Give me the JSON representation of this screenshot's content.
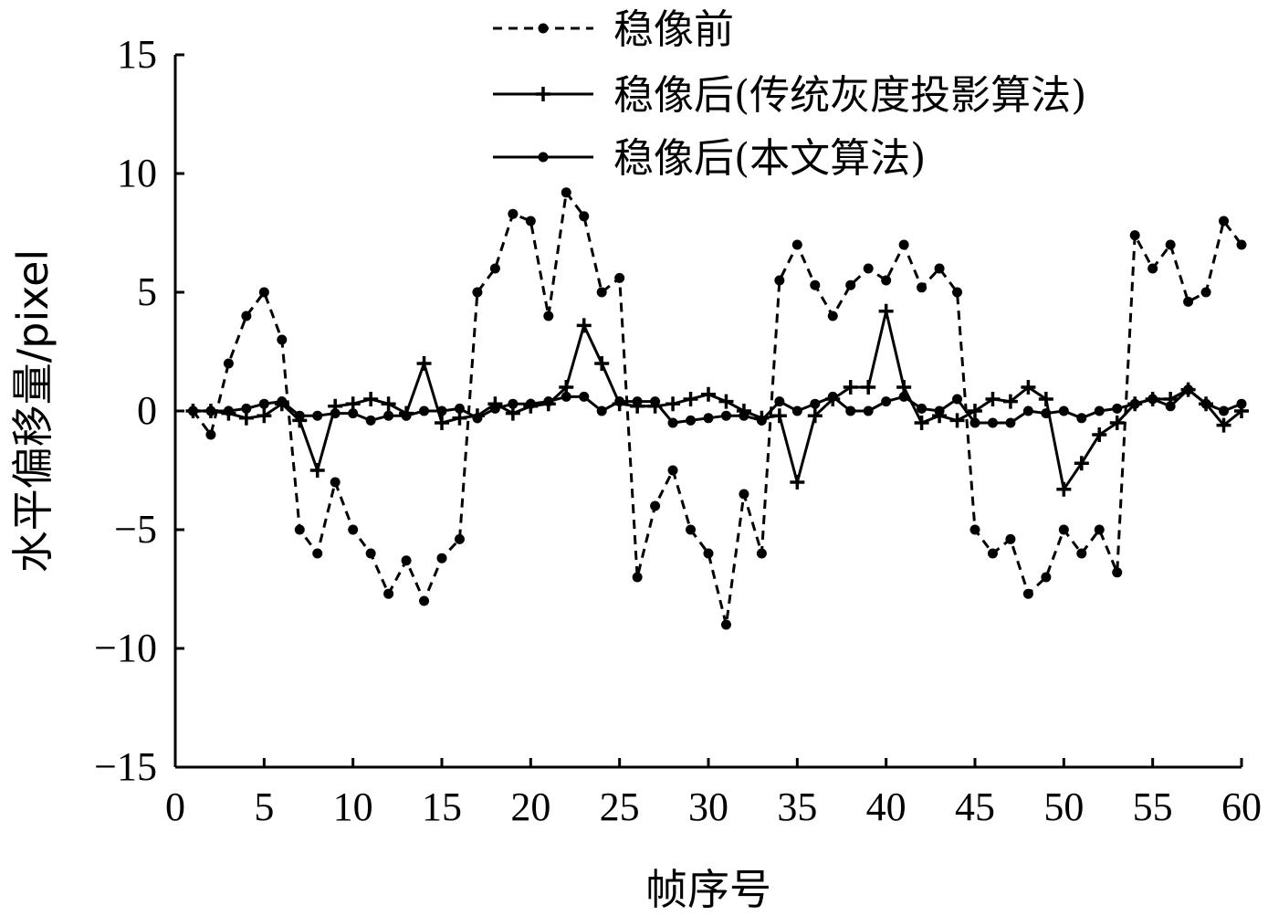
{
  "chart_data": {
    "type": "line",
    "xlabel": "帧序号",
    "ylabel": "水平偏移量/pixel",
    "xlim": [
      0,
      60
    ],
    "ylim": [
      -15,
      15
    ],
    "x_ticks": [
      0,
      5,
      10,
      15,
      20,
      25,
      30,
      35,
      40,
      45,
      50,
      55,
      60
    ],
    "y_ticks": [
      15,
      10,
      5,
      0,
      -5,
      -10,
      -15
    ],
    "y_tick_labels": [
      "15",
      "10",
      "5",
      "0",
      "−5",
      "−10",
      "−15"
    ],
    "grid": false,
    "legend_position": "top",
    "x": [
      1,
      2,
      3,
      4,
      5,
      6,
      7,
      8,
      9,
      10,
      11,
      12,
      13,
      14,
      15,
      16,
      17,
      18,
      19,
      20,
      21,
      22,
      23,
      24,
      25,
      26,
      27,
      28,
      29,
      30,
      31,
      32,
      33,
      34,
      35,
      36,
      37,
      38,
      39,
      40,
      41,
      42,
      43,
      44,
      45,
      46,
      47,
      48,
      49,
      50,
      51,
      52,
      53,
      54,
      55,
      56,
      57,
      58,
      59,
      60
    ],
    "series": [
      {
        "name": "稳像前",
        "line_style": "dashed",
        "marker": "circle",
        "values": [
          0,
          -1,
          2,
          4,
          5,
          3,
          -5,
          -6,
          -3,
          -5,
          -6,
          -7.7,
          -6.3,
          -8,
          -6.2,
          -5.4,
          5,
          6,
          8.3,
          8,
          4,
          9.2,
          8.2,
          5,
          5.6,
          -7,
          -4,
          -2.5,
          -5,
          -6,
          -9,
          -3.5,
          -6,
          5.5,
          7,
          5.3,
          4,
          5.3,
          6,
          5.5,
          7,
          5.2,
          6,
          5,
          -5,
          -6,
          -5.4,
          -7.7,
          -7,
          -5,
          -6,
          -5,
          -6.8,
          7.4,
          6,
          7,
          4.6,
          5,
          8,
          7
        ]
      },
      {
        "name": "稳像后(传统灰度投影算法)",
        "line_style": "solid",
        "marker": "cross",
        "values": [
          0,
          0,
          -0.1,
          -0.3,
          -0.2,
          0.3,
          -0.4,
          -2.5,
          0.2,
          0.3,
          0.5,
          0.3,
          -0.1,
          2,
          -0.5,
          -0.3,
          -0.2,
          0.3,
          -0.1,
          0.2,
          0.3,
          1,
          3.6,
          2,
          0.3,
          0.2,
          0.2,
          0.3,
          0.5,
          0.7,
          0.4,
          0,
          -0.3,
          -0.2,
          -3,
          -0.2,
          0.5,
          1,
          1,
          4.2,
          1,
          -0.5,
          -0.2,
          -0.4,
          0,
          0.5,
          0.4,
          1,
          0.5,
          -3.3,
          -2.2,
          -1,
          -0.5,
          0.3,
          0.5,
          0.5,
          0.9,
          0.3,
          -0.6,
          0
        ]
      },
      {
        "name": "稳像后(本文算法)",
        "line_style": "solid",
        "marker": "circle",
        "values": [
          0,
          0,
          0,
          0.1,
          0.3,
          0.4,
          -0.2,
          -0.2,
          -0.1,
          -0.1,
          -0.4,
          -0.2,
          -0.2,
          0,
          0,
          0.1,
          -0.3,
          0.1,
          0.3,
          0.3,
          0.4,
          0.6,
          0.6,
          0,
          0.4,
          0.4,
          0.4,
          -0.5,
          -0.4,
          -0.3,
          -0.2,
          -0.2,
          -0.4,
          0.4,
          0,
          0.3,
          0.6,
          0,
          0,
          0.4,
          0.6,
          0.1,
          0,
          0.5,
          -0.5,
          -0.5,
          -0.5,
          0,
          -0.1,
          0,
          -0.3,
          0,
          0.1,
          0.3,
          0.5,
          0.2,
          0.9,
          0.3,
          0,
          0.3
        ]
      }
    ]
  }
}
